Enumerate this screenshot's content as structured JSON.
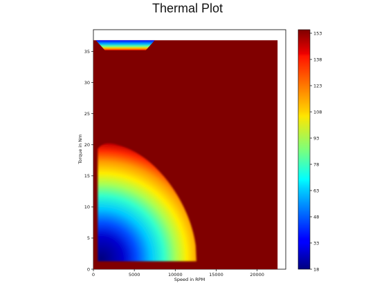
{
  "page": {
    "title": "Thermal Plot"
  },
  "chart_data": {
    "type": "heatmap",
    "title": "",
    "xlabel": "Speed in RPM",
    "ylabel": "Torque in Nm",
    "xlim": [
      0,
      23500
    ],
    "ylim": [
      0,
      38.5
    ],
    "x_ticks": [
      0,
      5000,
      10000,
      15000,
      20000
    ],
    "y_ticks": [
      0,
      5,
      10,
      15,
      20,
      25,
      30,
      35
    ],
    "data_extent": {
      "x": [
        0,
        22500
      ],
      "y": [
        0,
        36.8
      ]
    },
    "colormap": "jet",
    "colorbar": {
      "min": 18,
      "max": 155,
      "ticks": [
        18,
        33,
        48,
        63,
        78,
        93,
        108,
        123,
        138,
        153
      ],
      "placement": "right"
    },
    "regions": [
      {
        "name": "saturated background",
        "value": 155
      },
      {
        "name": "low-temperature operating envelope",
        "speed_range": [
          700,
          12500
        ],
        "torque_range": [
          1.5,
          20.5
        ],
        "min_value": 18,
        "max_value": 155
      },
      {
        "name": "top-left cold strip",
        "speed_range": [
          300,
          7500
        ],
        "torque_range": [
          35.2,
          36.8
        ],
        "min_value": 18,
        "max_value": 155
      }
    ],
    "grid": false,
    "legend": "none"
  }
}
